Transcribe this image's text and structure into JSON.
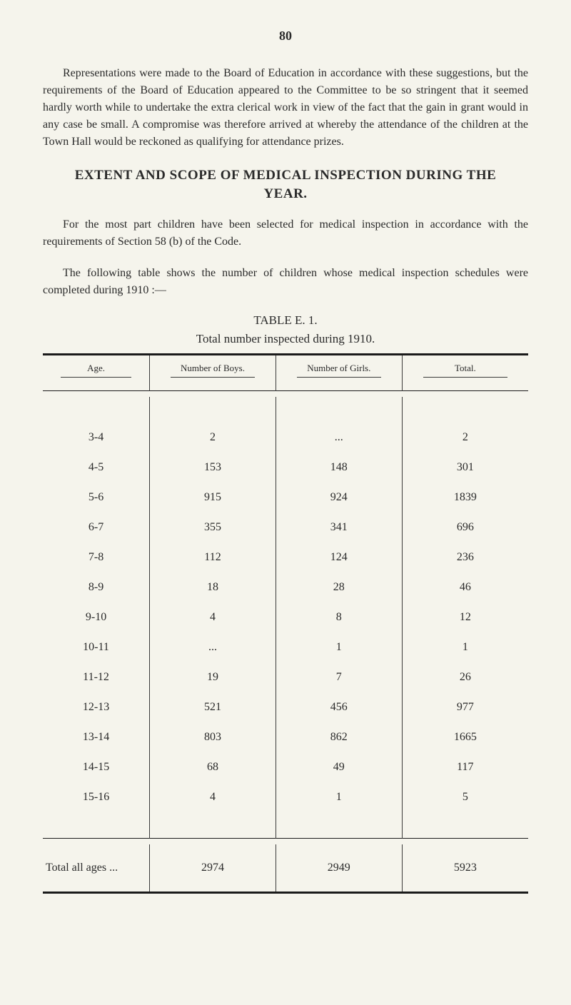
{
  "page_number": "80",
  "paragraphs": {
    "p1": "Representations were made to the Board of Education in accordance with these suggestions, but the requirements of the Board of Education appeared to the Committee to be so stringent that it seemed hardly worth while to undertake the extra clerical work in view of the fact that the gain in grant would in any case be small. A compromise was therefore arrived at whereby the attendance of the children at the Town Hall would be reckoned as qualifying for attendance prizes.",
    "p2": "For the most part children have been selected for medical inspection in accordance with the requirements of Section 58 (b) of the Code.",
    "p3": "The following table shows the number of children whose medical inspection schedules were completed during 1910 :—"
  },
  "headings": {
    "main": "EXTENT AND SCOPE OF MEDICAL INSPECTION DURING THE",
    "sub": "YEAR."
  },
  "table": {
    "caption": "TABLE E. 1.",
    "subcaption": "Total number inspected during 1910.",
    "columns": [
      "Age.",
      "Number of Boys.",
      "Number of Girls.",
      "Total."
    ],
    "rows": [
      [
        "3-4",
        "2",
        "...",
        "2"
      ],
      [
        "4-5",
        "153",
        "148",
        "301"
      ],
      [
        "5-6",
        "915",
        "924",
        "1839"
      ],
      [
        "6-7",
        "355",
        "341",
        "696"
      ],
      [
        "7-8",
        "112",
        "124",
        "236"
      ],
      [
        "8-9",
        "18",
        "28",
        "46"
      ],
      [
        "9-10",
        "4",
        "8",
        "12"
      ],
      [
        "10-11",
        "...",
        "1",
        "1"
      ],
      [
        "11-12",
        "19",
        "7",
        "26"
      ],
      [
        "12-13",
        "521",
        "456",
        "977"
      ],
      [
        "13-14",
        "803",
        "862",
        "1665"
      ],
      [
        "14-15",
        "68",
        "49",
        "117"
      ],
      [
        "15-16",
        "4",
        "1",
        "5"
      ]
    ],
    "total_row": [
      "Total all ages   ...",
      "2974",
      "2949",
      "5923"
    ]
  }
}
